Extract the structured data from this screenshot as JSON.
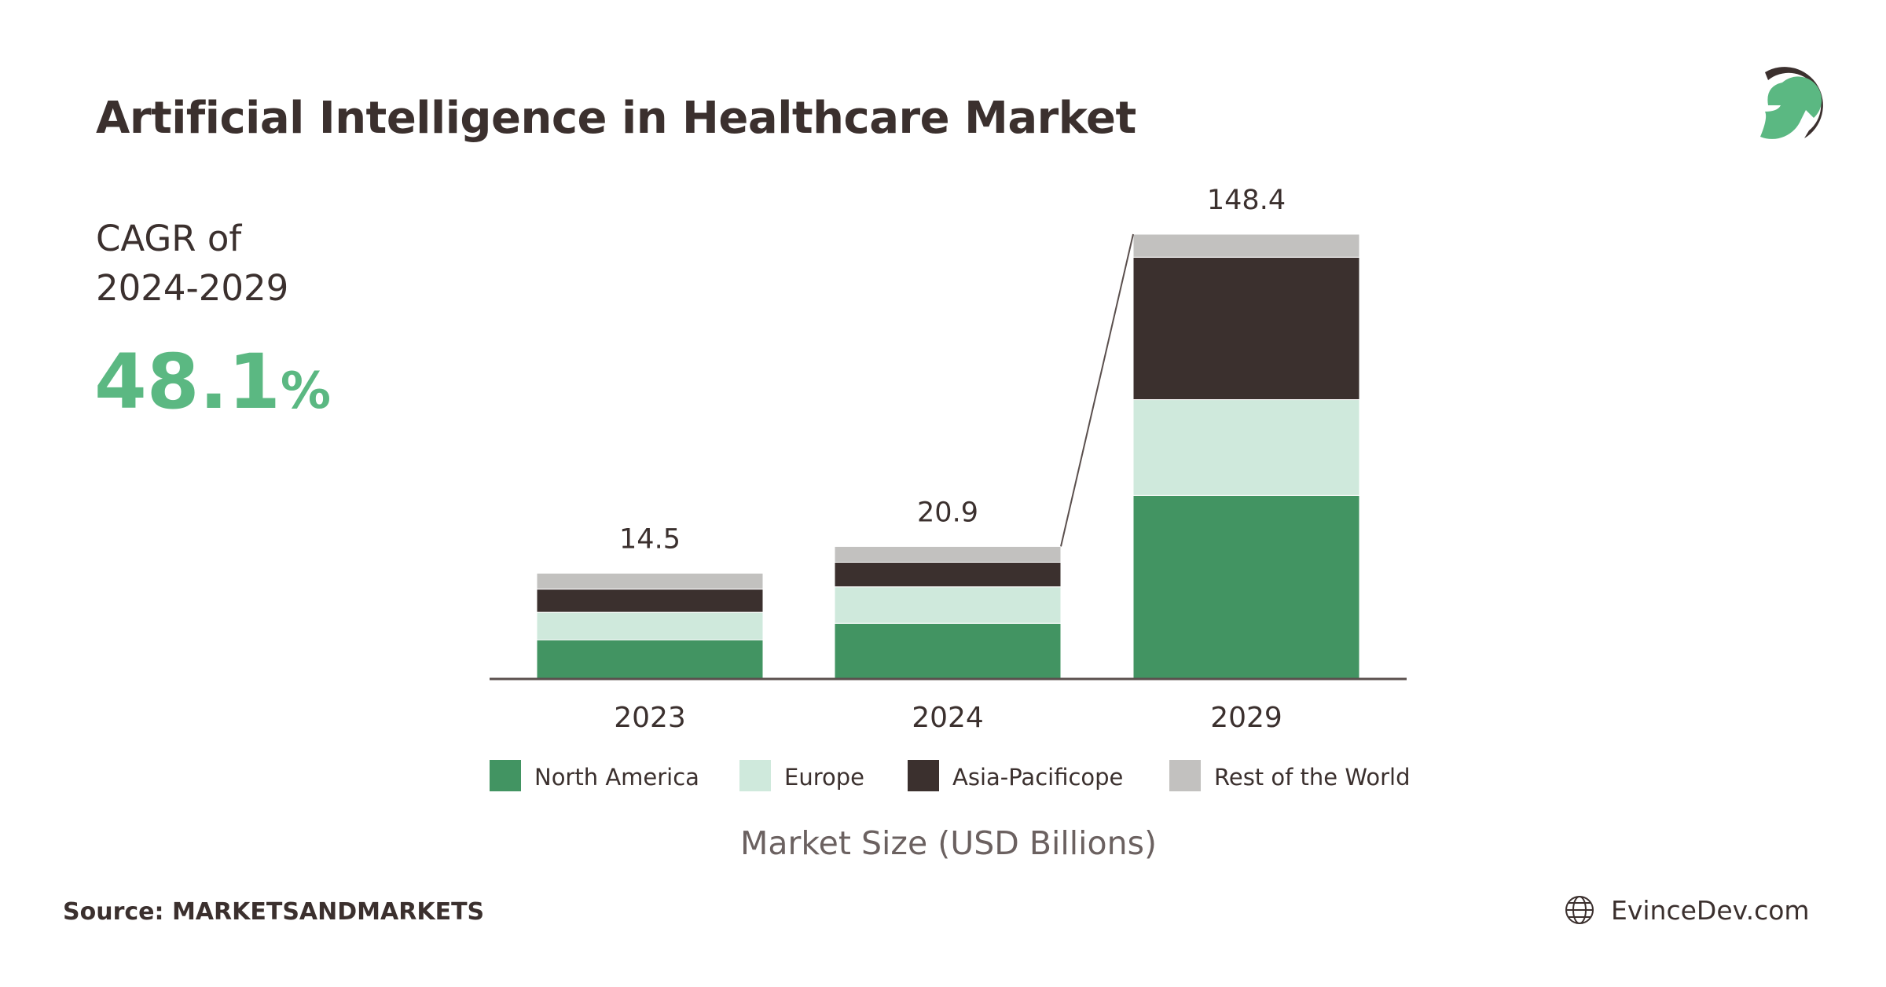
{
  "title": "Artificial Intelligence in Healthcare Market",
  "cagr": {
    "label_line1": "CAGR of",
    "label_line2": "2024-2029",
    "value": "48.1",
    "unit": "%"
  },
  "footer": {
    "source": "Source: MARKETSANDMARKETS",
    "site": "EvinceDev.com",
    "site_icon": "globe-icon"
  },
  "logo": {
    "name": "evincedev-helmet-logo"
  },
  "colors": {
    "north_america": "#429462",
    "europe": "#cfe9dc",
    "asia_pacific": "#3b302e",
    "rest_of_world": "#c2c1bf",
    "accent": "#5bb882",
    "text": "#3b302e"
  },
  "chart_data": {
    "type": "bar",
    "stacked": true,
    "categories": [
      "2023",
      "2024",
      "2029"
    ],
    "totals": [
      "14.5",
      "20.9",
      "148.4"
    ],
    "series": [
      {
        "name": "North America",
        "values": [
          5.3,
          8.7,
          61.1
        ],
        "color": "#429462"
      },
      {
        "name": "Europe",
        "values": [
          3.8,
          5.8,
          32.0
        ],
        "color": "#cfe9dc"
      },
      {
        "name": "Asia-Pacificope",
        "values": [
          3.2,
          3.9,
          47.6
        ],
        "color": "#3b302e"
      },
      {
        "name": "Rest of the World",
        "values": [
          2.2,
          2.5,
          7.7
        ],
        "color": "#c2c1bf"
      }
    ],
    "xlabel": "Market Size (USD Billions)",
    "ylabel": "",
    "grid": false,
    "legend": "bottom"
  }
}
